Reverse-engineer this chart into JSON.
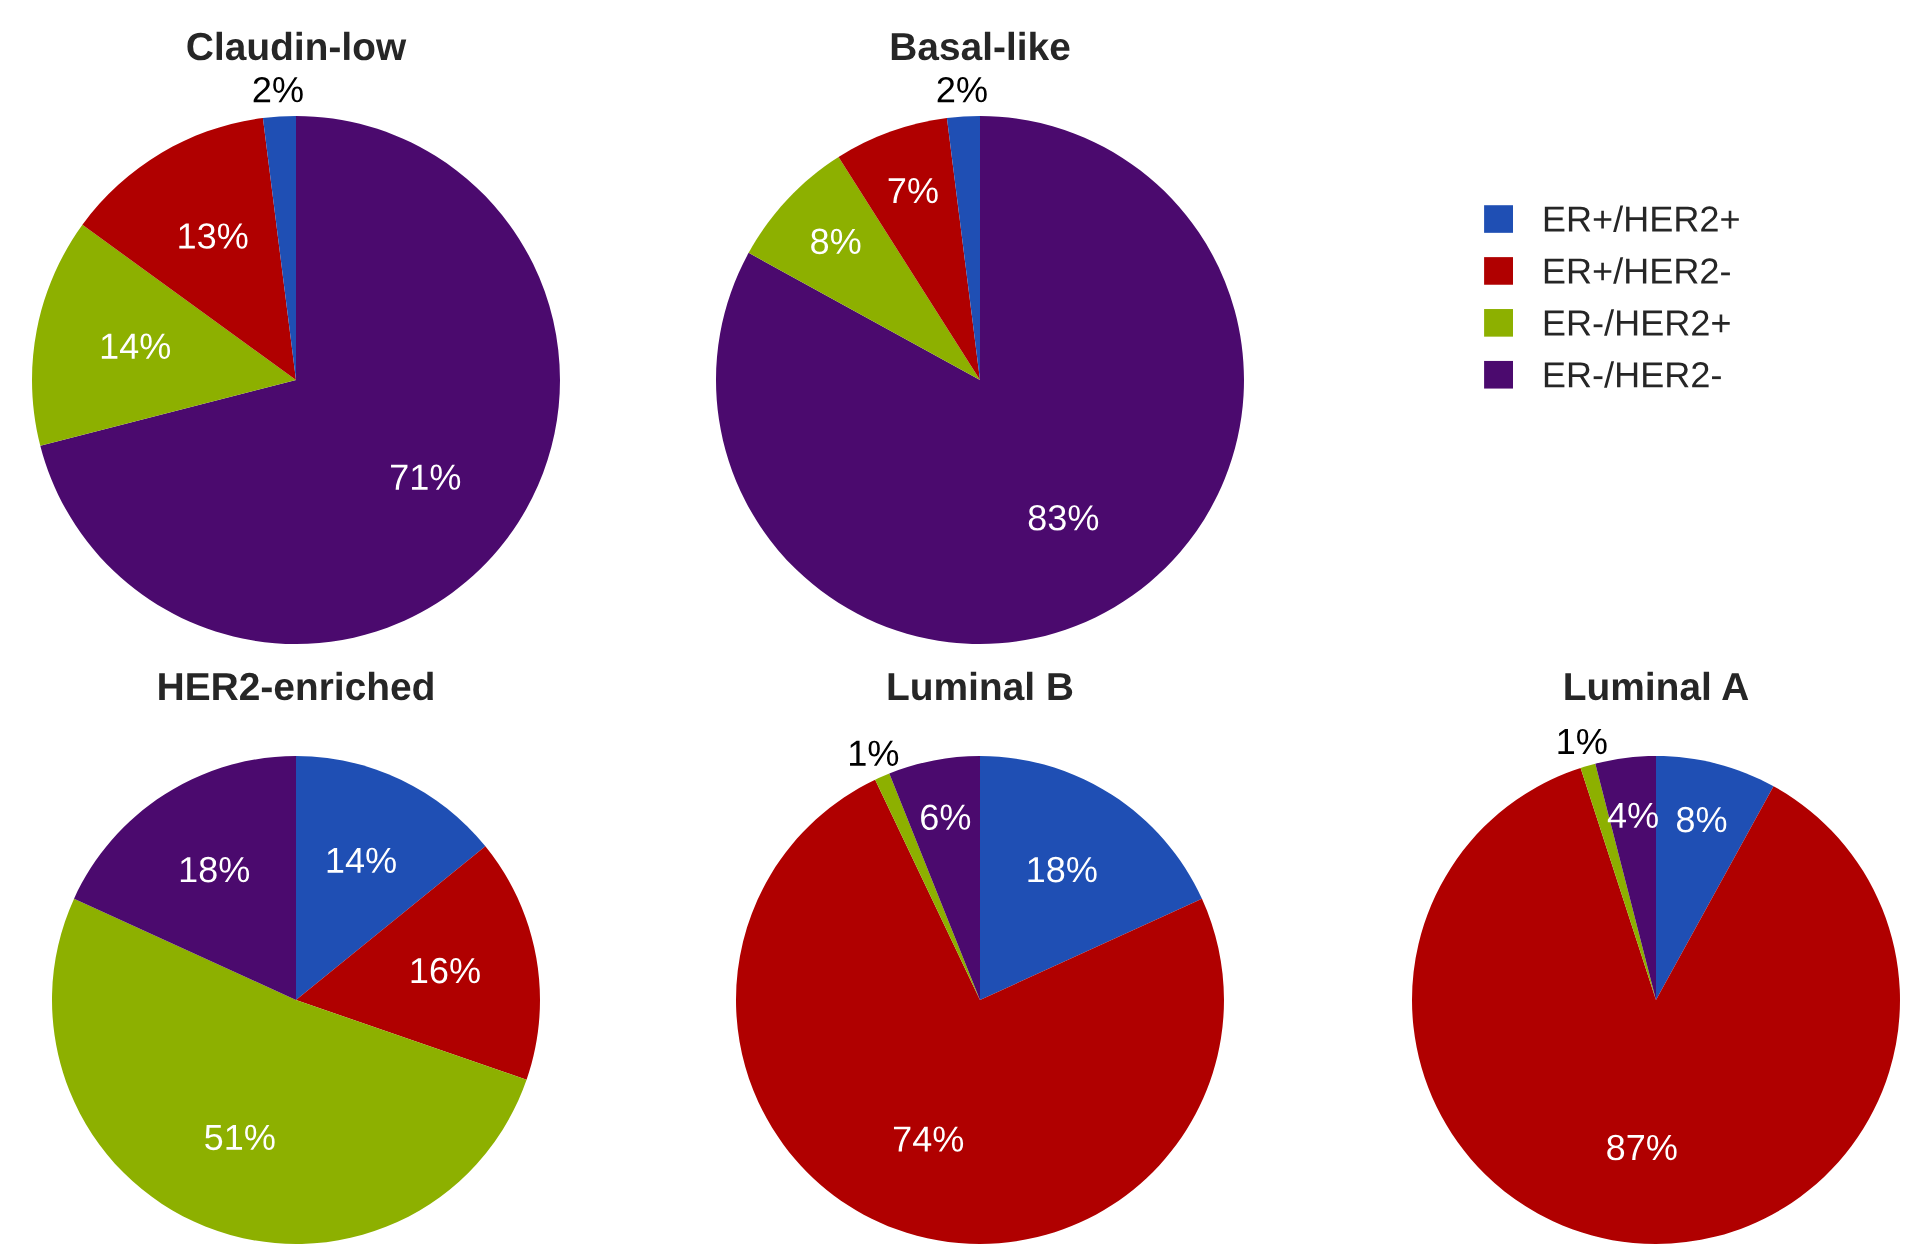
{
  "chart_data": [
    {
      "type": "pie",
      "title": "Claudin-low",
      "categories": [
        "ER-/HER2-",
        "ER-/HER2+",
        "ER+/HER2-",
        "ER+/HER2+"
      ],
      "values": [
        71,
        14,
        13,
        2
      ],
      "value_labels": [
        "71%",
        "14%",
        "13%",
        "2%"
      ],
      "colors": [
        "#4b0a6e",
        "#8db000",
        "#b00000",
        "#1f4fb4"
      ],
      "legend": "right"
    },
    {
      "type": "pie",
      "title": "Basal-like",
      "categories": [
        null,
        null,
        null,
        null
      ],
      "values": [
        83,
        8,
        7,
        2
      ],
      "value_labels": [
        "83%",
        "8%",
        "7%",
        "2%"
      ],
      "colors": [
        "#4b0a6e",
        "#8db000",
        "#b00000",
        "#1f4fb4"
      ]
    },
    {
      "type": "pie",
      "title": "HER2-enriched",
      "categories": [
        null,
        null,
        null,
        null
      ],
      "values": [
        14,
        16,
        51,
        18
      ],
      "value_labels": [
        "14%",
        "16%",
        "51%",
        "18%"
      ],
      "colors": [
        "#1f4fb4",
        "#b00000",
        "#8db000",
        "#4b0a6e"
      ]
    },
    {
      "type": "pie",
      "title": "Luminal B",
      "categories": [
        null,
        null,
        null,
        null
      ],
      "values": [
        18,
        74,
        1,
        6
      ],
      "value_labels": [
        "18%",
        "74%",
        "1%",
        "6%"
      ],
      "colors": [
        "#1f4fb4",
        "#b00000",
        "#8db000",
        "#4b0a6e"
      ]
    },
    {
      "type": "pie",
      "title": "Luminal A",
      "categories": [
        null,
        null,
        null,
        null
      ],
      "values": [
        8,
        87,
        1,
        4
      ],
      "value_labels": [
        "8%",
        "87%",
        "1%",
        "4%"
      ],
      "colors": [
        "#1f4fb4",
        "#b00000",
        "#8db000",
        "#4b0a6e"
      ]
    }
  ]
}
